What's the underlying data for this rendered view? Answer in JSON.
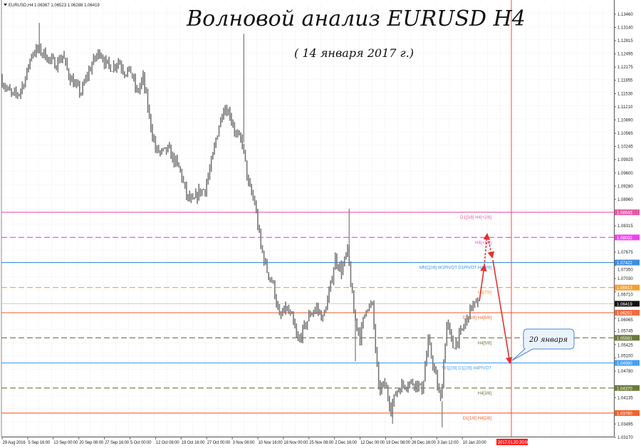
{
  "window": {
    "symbol_info": "EURUSD,H4",
    "ohlc": "1.06367 1.06523 1.06288 1.06419",
    "title": "Волновой анализ EURUSD H4",
    "subtitle": "( 14 января 2017 г.)",
    "callout": "20 января"
  },
  "chart_data": {
    "type": "candlestick",
    "symbol": "EURUSD",
    "timeframe": "H4",
    "ylim": [
      1.0317,
      1.1378
    ],
    "grid": true,
    "price_axis_ticks": [
      "1.13460",
      "1.13140",
      "1.12815",
      "1.12495",
      "1.12175",
      "1.11855",
      "1.11530",
      "1.11210",
      "1.10890",
      "1.10565",
      "1.10245",
      "1.09925",
      "1.09600",
      "1.09280",
      "1.08960",
      "1.08315",
      "1.07675",
      "1.07350",
      "1.07030",
      "1.06710",
      "1.06065",
      "1.05745",
      "1.05425",
      "1.05100",
      "1.04780",
      "1.04135",
      "1.03495",
      "1.03170"
    ],
    "time_axis_ticks": [
      "29 Aug 2016",
      "5 Sep 16:00",
      "13 Sep 00:00",
      "20 Sep 08:00",
      "27 Sep 16:00",
      "5 Oct 00:00",
      "12 Oct 08:00",
      "19 Oct 16:00",
      "27 Oct 00:00",
      "3 Nov 08:00",
      "10 Nov 16:00",
      "18 Nov 00:00",
      "25 Nov 08:00",
      "2 Dec 16:00",
      "12 Dec 00:00",
      "19 Dec 08:00",
      "26 Dec 16:00",
      "3 Jan 12:00",
      "10 Jan 20:00"
    ],
    "marker_time": "2017.01.20 20:00",
    "current_price": "1.06419",
    "closes": [
      1.119,
      1.1164,
      1.1147,
      1.1155,
      1.119,
      1.1251,
      1.1259,
      1.1251,
      1.1233,
      1.1225,
      1.1246,
      1.1199,
      1.1173,
      1.1155,
      1.1199,
      1.1233,
      1.1256,
      1.1225,
      1.1216,
      1.1233,
      1.1207,
      1.1207,
      1.1155,
      1.119,
      1.1095,
      1.1017,
      1.1008,
      1.1017,
      1.0991,
      1.0965,
      1.0904,
      1.0887,
      1.0913,
      1.0922,
      1.0982,
      1.106,
      1.1121,
      1.1104,
      1.1052,
      1.1034,
      1.093,
      1.0887,
      1.078,
      1.0722,
      1.0688,
      1.0606,
      1.0631,
      1.0606,
      1.0549,
      1.0584,
      1.0619,
      1.0631,
      1.0606,
      1.0665,
      1.0752,
      1.0722,
      1.0769,
      1.0619,
      1.0561,
      1.0636,
      1.0636,
      1.0433,
      1.0445,
      1.0388,
      1.0433,
      1.0445,
      1.045,
      1.045,
      1.0433,
      1.0549,
      1.048,
      1.0405,
      1.0596,
      1.0537,
      1.0561,
      1.0596,
      1.0636,
      1.0642
    ],
    "wicks": [
      {
        "index": 6,
        "high": 1.1325
      },
      {
        "index": 39,
        "high": 1.1298
      },
      {
        "index": 56,
        "high": 1.0873
      },
      {
        "index": 57,
        "low": 1.0502
      },
      {
        "index": 63,
        "low": 1.035
      },
      {
        "index": 71,
        "low": 1.0341
      }
    ],
    "levels": [
      {
        "price": 1.08643,
        "tag": "1.08643",
        "label": "D1[5/8] H4[+2/8]",
        "color": "#e75aa8",
        "style": "solid"
      },
      {
        "price": 1.08032,
        "tag": "1.08032",
        "label": "H4[+1/8]",
        "color": "#ee44ee",
        "style": "dashed"
      },
      {
        "price": 1.07422,
        "tag": "1.07422",
        "label": "MN1[2/8] W1PIVOT D1PIVOT H4[8/8]",
        "color": "#3d8fe0",
        "style": "solid"
      },
      {
        "price": 1.06813,
        "tag": "1.06813",
        "label": "H4[7/8]",
        "color": "#f5a030",
        "style": "dashed"
      },
      {
        "price": 1.06201,
        "tag": "1.06201",
        "label": "D1[3/8] H4[6/8]",
        "color": "#f06a40",
        "style": "solid"
      },
      {
        "price": 1.05591,
        "tag": "1.05591",
        "label": "H4[5/8]",
        "color": "#6b7a3a",
        "style": "dashed"
      },
      {
        "price": 1.0498,
        "tag": "1.04980",
        "label": "W1[2/8] D1[2/8] H4PIVOT",
        "color": "#45a0f0",
        "style": "solid"
      },
      {
        "price": 1.0437,
        "tag": "1.04370",
        "label": "H4[3/8]",
        "color": "#6b7a3a",
        "style": "dashed"
      },
      {
        "price": 1.0376,
        "tag": "1.03760",
        "label": "D1[1/8] H4[2/8]",
        "color": "#f5602a",
        "style": "solid"
      }
    ],
    "forecast_path": [
      1.0648,
      1.0811,
      1.0755,
      1.0498
    ],
    "colors": {
      "candles": "#777777",
      "forecast": "#e53030",
      "marker": "#ff4444",
      "current_tag": "#111111"
    }
  }
}
